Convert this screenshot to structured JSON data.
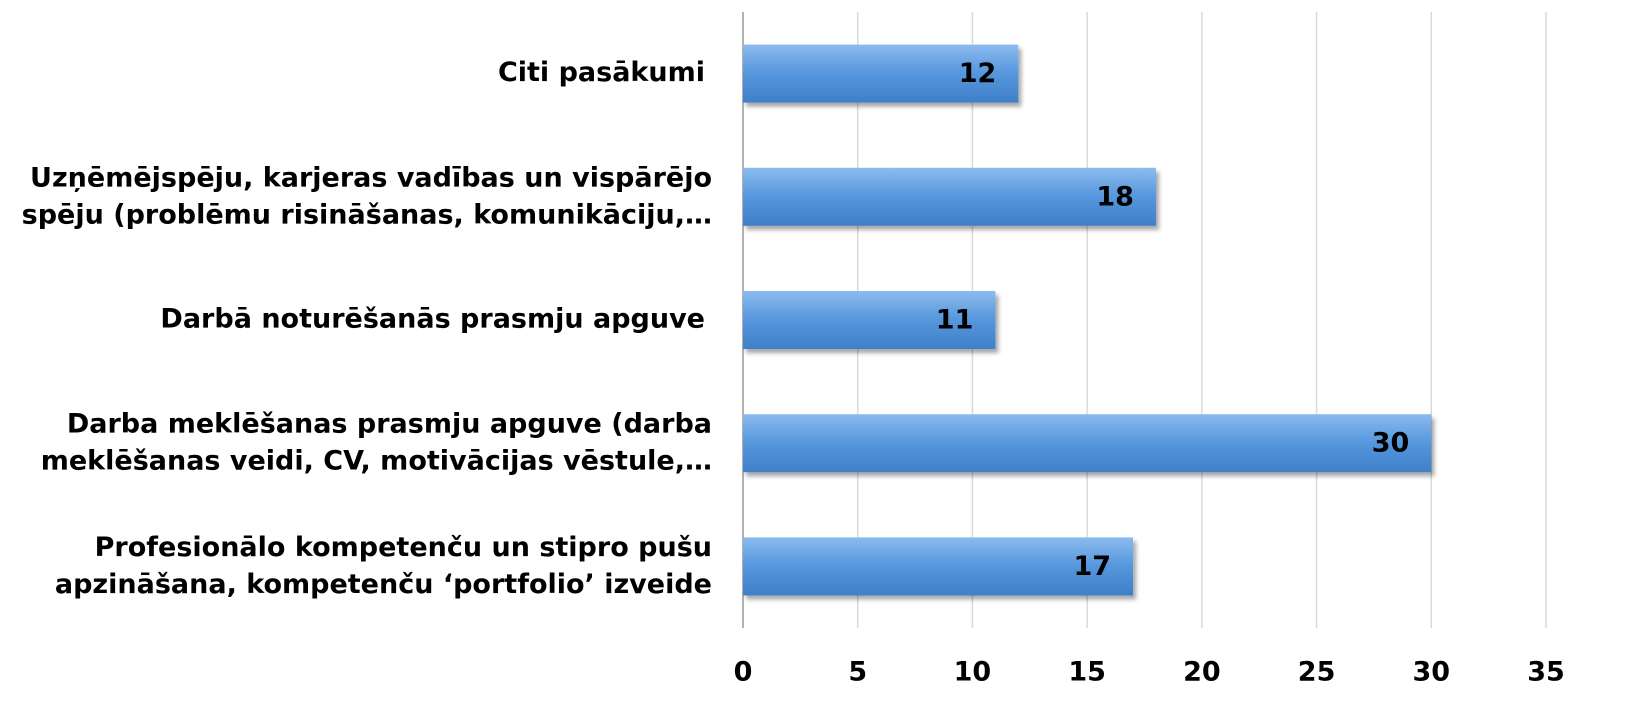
{
  "chart_data": {
    "type": "barh",
    "categories": [
      "Citi pasākumi",
      "Uzņēmējspēju, karjeras vadības un vispārējo\nspēju (problēmu risināšanas,  komunikāciju,…",
      "Darbā noturēšanās prasmju apguve",
      "Darba meklēšanas prasmju apguve (darba\nmeklēšanas veidi, CV, motivācijas vēstule,…",
      "Profesionālo kompetenču un stipro pušu\napzināšana, kompetenču ‘portfolio’ izveide"
    ],
    "values": [
      12,
      18,
      11,
      30,
      17
    ],
    "color": "#4f8fd4",
    "xlim": [
      0,
      35
    ],
    "xticks": [
      0,
      5,
      10,
      15,
      20,
      25,
      30,
      35
    ],
    "grid": true
  }
}
